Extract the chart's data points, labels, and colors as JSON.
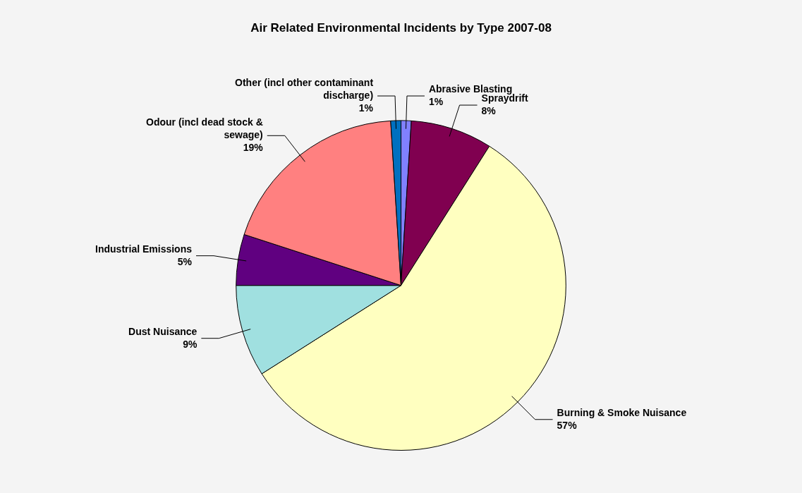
{
  "chart_data": {
    "type": "pie",
    "title": "Air Related Environmental Incidents by Type 2007-08",
    "categories": [
      "Abrasive Blasting",
      "Spraydrift",
      "Burning & Smoke Nuisance",
      "Dust Nuisance",
      "Industrial Emissions",
      "Odour (incl dead stock & sewage)",
      "Other (incl other contaminant discharge)"
    ],
    "values": [
      1,
      8,
      57,
      9,
      5,
      19,
      1
    ],
    "value_labels": [
      "1%",
      "8%",
      "57%",
      "9%",
      "5%",
      "19%",
      "1%"
    ],
    "colors": [
      "#8080ff",
      "#800050",
      "#ffffc0",
      "#a0e0e0",
      "#600080",
      "#ff8080",
      "#0070c0"
    ],
    "legend": false
  }
}
